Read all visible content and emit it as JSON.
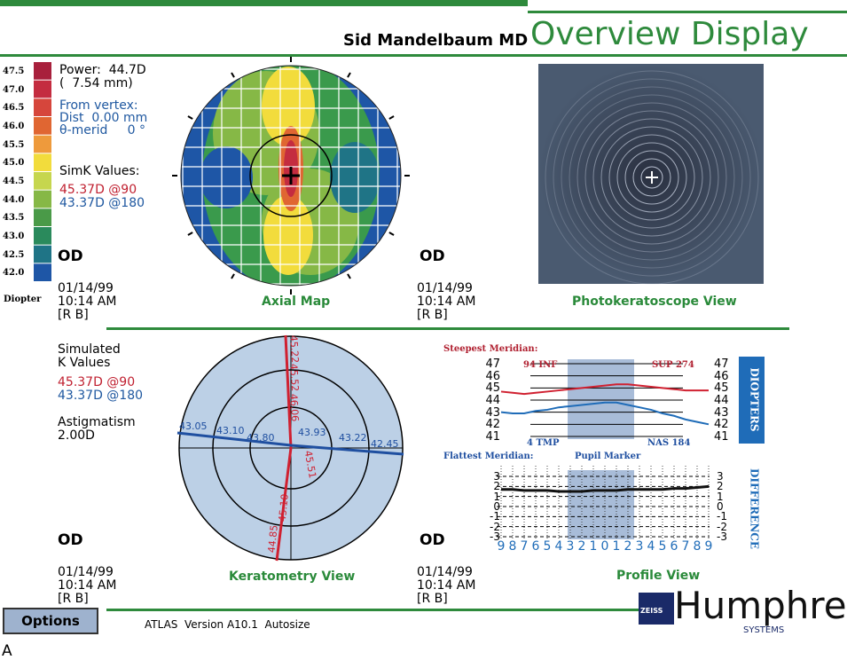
{
  "header": {
    "doctor": "Sid Mandelbaum MD",
    "title": "Overview Display"
  },
  "color_scale": {
    "labels": [
      "47.5",
      "47.0",
      "46.5",
      "46.0",
      "45.5",
      "45.0",
      "44.5",
      "44.0",
      "43.5",
      "43.0",
      "42.5",
      "42.0"
    ],
    "colors": [
      "#a8203c",
      "#c42c40",
      "#d6463c",
      "#e06632",
      "#ee9a3c",
      "#f2dc3c",
      "#c6d64e",
      "#86b846",
      "#4a9a48",
      "#2a8a5c",
      "#1f7486",
      "#1e56a6"
    ],
    "unit": "Diopter"
  },
  "axial_map": {
    "power": "Power:  44.7D",
    "radius": "(  7.54 mm)",
    "from_vertex": "From vertex:",
    "dist": "Dist  0.00 mm",
    "merid": "θ-merid     0 °",
    "simk_title": "SimK Values:",
    "simk_steep": "45.37D @90",
    "simk_flat": "43.37D @180",
    "eye": "OD",
    "date": "01/14/99",
    "time": "10:14 AM",
    "operator": "[R B]",
    "caption": "Axial Map"
  },
  "photokeratoscope": {
    "eye": "OD",
    "date": "01/14/99",
    "time": "10:14 AM",
    "operator": "[R B]",
    "caption": "Photokeratoscope View"
  },
  "keratometry": {
    "sim_title": "Simulated",
    "sim_title2": "K Values",
    "steep": "45.37D @90",
    "flat": "43.37D @180",
    "astig_title": "Astigmatism",
    "astig": "2.00D",
    "steep_labels": [
      "45.22",
      "45.52",
      "46.06",
      "45.51",
      "45.10",
      "44.85"
    ],
    "flat_labels": [
      "43.05",
      "43.10",
      "43.80",
      "43.93",
      "43.22",
      "42.45"
    ],
    "eye": "OD",
    "date": "01/14/99",
    "time": "10:14 AM",
    "operator": "[R B]",
    "caption": "Keratometry View"
  },
  "profile": {
    "steepest_label": "Steepest Meridian:",
    "steep_left": "94 INF",
    "steep_right": "SUP 274",
    "flat_left": "4 TMP",
    "flat_right": "NAS 184",
    "pupil": "Pupil Marker",
    "flattest_label": "Flattest Meridian:",
    "diopter_ticks": [
      47,
      46,
      45,
      44,
      43,
      42,
      41
    ],
    "diopters": "DIOPTERS",
    "difference_ticks": [
      3,
      2,
      1,
      0,
      -1,
      -2,
      -3
    ],
    "difference": "DIFFERENCE",
    "x_labels": [
      9,
      8,
      7,
      6,
      5,
      4,
      3,
      2,
      1,
      0,
      1,
      2,
      3,
      4,
      5,
      6,
      7,
      8,
      9
    ],
    "steep_curve": [
      44.7,
      44.6,
      44.5,
      44.6,
      44.7,
      44.8,
      44.9,
      45.0,
      45.1,
      45.2,
      45.3,
      45.3,
      45.2,
      45.1,
      45.0,
      44.9,
      44.8,
      44.8,
      44.8
    ],
    "flat_curve": [
      43.0,
      42.9,
      42.9,
      43.1,
      43.2,
      43.4,
      43.5,
      43.6,
      43.7,
      43.8,
      43.8,
      43.6,
      43.4,
      43.2,
      42.9,
      42.7,
      42.4,
      42.2,
      42.0
    ],
    "diff_curve": [
      1.7,
      1.7,
      1.6,
      1.6,
      1.6,
      1.5,
      1.5,
      1.5,
      1.6,
      1.6,
      1.6,
      1.7,
      1.7,
      1.7,
      1.7,
      1.8,
      1.8,
      1.9,
      2.0
    ],
    "eye": "OD",
    "date": "01/14/99",
    "time": "10:14 AM",
    "operator": "[R B]",
    "caption": "Profile View"
  },
  "footer": {
    "options": "Options",
    "version": "ATLAS  Version A10.1  Autosize",
    "brand": "Humphrey",
    "brand_sub": "SYSTEMS",
    "badge": "ZEISS"
  },
  "figure_label": "A"
}
